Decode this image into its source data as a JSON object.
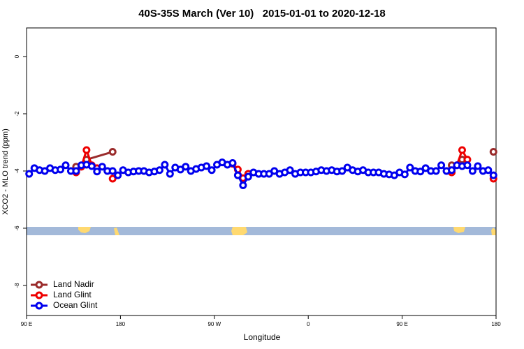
{
  "chart_data": {
    "type": "line",
    "title": "40S-35S March (Ver 10)   2015-01-01 to 2020-12-18",
    "x_label": "Longitude",
    "y_label": "XCO2 - MLO trend (ppm)",
    "xlim": [
      90,
      540
    ],
    "xticks": [
      {
        "value": 90,
        "label": "90 E"
      },
      180,
      {
        "value": 270,
        "label": "90 W"
      },
      {
        "value": 360,
        "label": "0"
      },
      {
        "value": 450,
        "label": "90 E"
      },
      {
        "value": 540,
        "label": "180"
      }
    ],
    "ylim": [
      -9.05,
      1
    ],
    "yticks": [
      0,
      -2,
      -4,
      -6,
      -8
    ],
    "legend": "bottom-left",
    "series": [
      {
        "name": "Land Nadir",
        "color": "#9a2b2b",
        "x": [
          137.5,
          147.5,
          172.5,
          null,
          302.5,
          null,
          497.5,
          507.5,
          null,
          537.5
        ],
        "values": [
          -3.85,
          -3.6,
          -3.33,
          null,
          -4.1,
          null,
          -3.8,
          -3.6,
          null,
          -3.33
        ]
      },
      {
        "name": "Land Glint",
        "color": "#ee0000",
        "x": [
          137.5,
          142.5,
          147.5,
          152.5,
          157.5,
          null,
          172.5,
          null,
          287.5,
          292.5,
          297.5,
          302.5,
          null,
          497.5,
          502.5,
          507.5,
          512.5,
          null,
          537.5
        ],
        "values": [
          -4.05,
          -3.85,
          -3.27,
          -3.8,
          -3.9,
          null,
          -4.27,
          null,
          -3.75,
          -3.95,
          -4.25,
          -4.1,
          null,
          -4.05,
          -3.8,
          -3.27,
          -3.6,
          null,
          -4.27
        ]
      },
      {
        "name": "Ocean Glint",
        "color": "#0000ee",
        "x": [
          92.5,
          97.5,
          102.5,
          107.5,
          112.5,
          117.5,
          122.5,
          127.5,
          132.5,
          137.5,
          142.5,
          147.5,
          152.5,
          157.5,
          162.5,
          167.5,
          172.5,
          177.5,
          182.5,
          187.5,
          192.5,
          197.5,
          202.5,
          207.5,
          212.5,
          217.5,
          222.5,
          227.5,
          232.5,
          237.5,
          242.5,
          247.5,
          252.5,
          257.5,
          262.5,
          267.5,
          272.5,
          277.5,
          282.5,
          287.5,
          292.5,
          297.5,
          302.5,
          307.5,
          312.5,
          317.5,
          322.5,
          327.5,
          332.5,
          337.5,
          342.5,
          347.5,
          352.5,
          357.5,
          362.5,
          367.5,
          372.5,
          377.5,
          382.5,
          387.5,
          392.5,
          397.5,
          402.5,
          407.5,
          412.5,
          417.5,
          422.5,
          427.5,
          432.5,
          437.5,
          442.5,
          447.5,
          452.5,
          457.5,
          462.5,
          467.5,
          472.5,
          477.5,
          482.5,
          487.5,
          492.5,
          497.5,
          502.5,
          507.5,
          512.5,
          517.5,
          522.5,
          527.5,
          532.5,
          537.5
        ],
        "values": [
          -4.1,
          -3.9,
          -3.97,
          -4.0,
          -3.9,
          -3.97,
          -3.95,
          -3.8,
          -4.0,
          -4.0,
          -3.8,
          -3.78,
          -3.83,
          -4.02,
          -3.85,
          -4.0,
          -4.0,
          -4.15,
          -3.97,
          -4.05,
          -4.02,
          -4.0,
          -4.0,
          -4.05,
          -4.02,
          -3.97,
          -3.78,
          -4.1,
          -3.88,
          -3.95,
          -3.85,
          -4.0,
          -3.93,
          -3.88,
          -3.83,
          -3.97,
          -3.78,
          -3.7,
          -3.78,
          -3.72,
          -4.15,
          -4.5,
          -4.2,
          -4.05,
          -4.1,
          -4.1,
          -4.1,
          -4.0,
          -4.1,
          -4.05,
          -3.97,
          -4.1,
          -4.05,
          -4.05,
          -4.05,
          -4.02,
          -3.97,
          -4.0,
          -3.97,
          -4.02,
          -4.0,
          -3.88,
          -3.97,
          -4.02,
          -3.97,
          -4.05,
          -4.05,
          -4.05,
          -4.1,
          -4.12,
          -4.15,
          -4.05,
          -4.12,
          -3.88,
          -4.0,
          -4.02,
          -3.9,
          -4.0,
          -4.0,
          -3.8,
          -4.0,
          -3.97,
          -3.8,
          -3.83,
          -3.8,
          -4.0,
          -3.83,
          -4.0,
          -3.97,
          -4.15
        ]
      }
    ]
  }
}
